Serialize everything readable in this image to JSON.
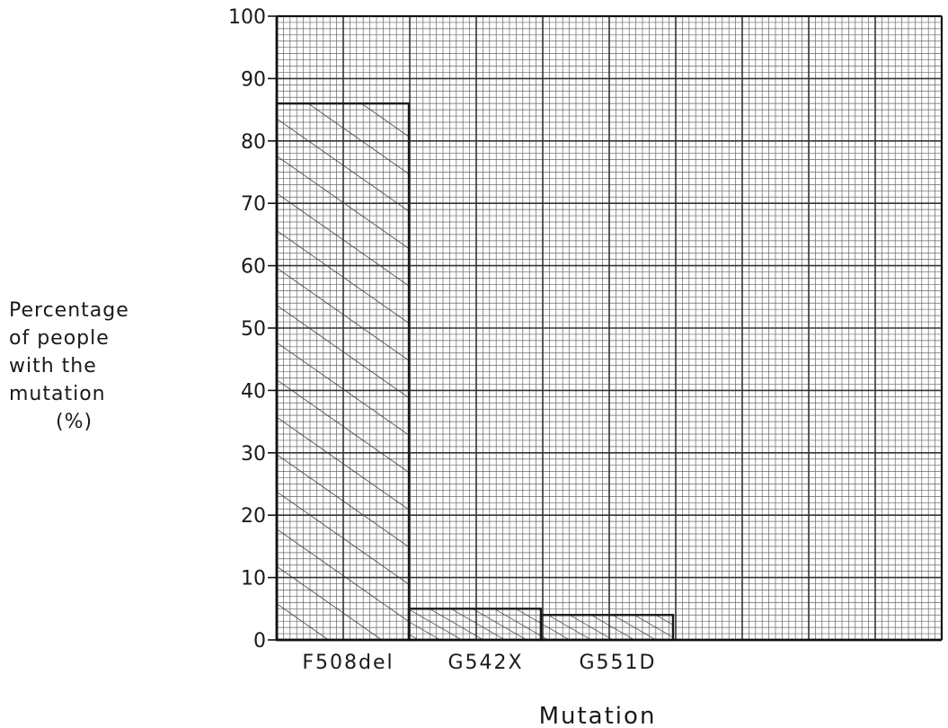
{
  "chart_data": {
    "type": "bar",
    "categories": [
      "F508del",
      "G542X",
      "G551D"
    ],
    "values": [
      86,
      5,
      4
    ],
    "xlabel": "Mutation",
    "ylabel_lines": [
      "Percentage",
      "of people",
      "with the",
      "mutation",
      "(%)"
    ],
    "ylim": [
      0,
      100
    ],
    "yticks": [
      0,
      10,
      20,
      30,
      40,
      50,
      60,
      70,
      80,
      90,
      100
    ],
    "grid": true
  }
}
